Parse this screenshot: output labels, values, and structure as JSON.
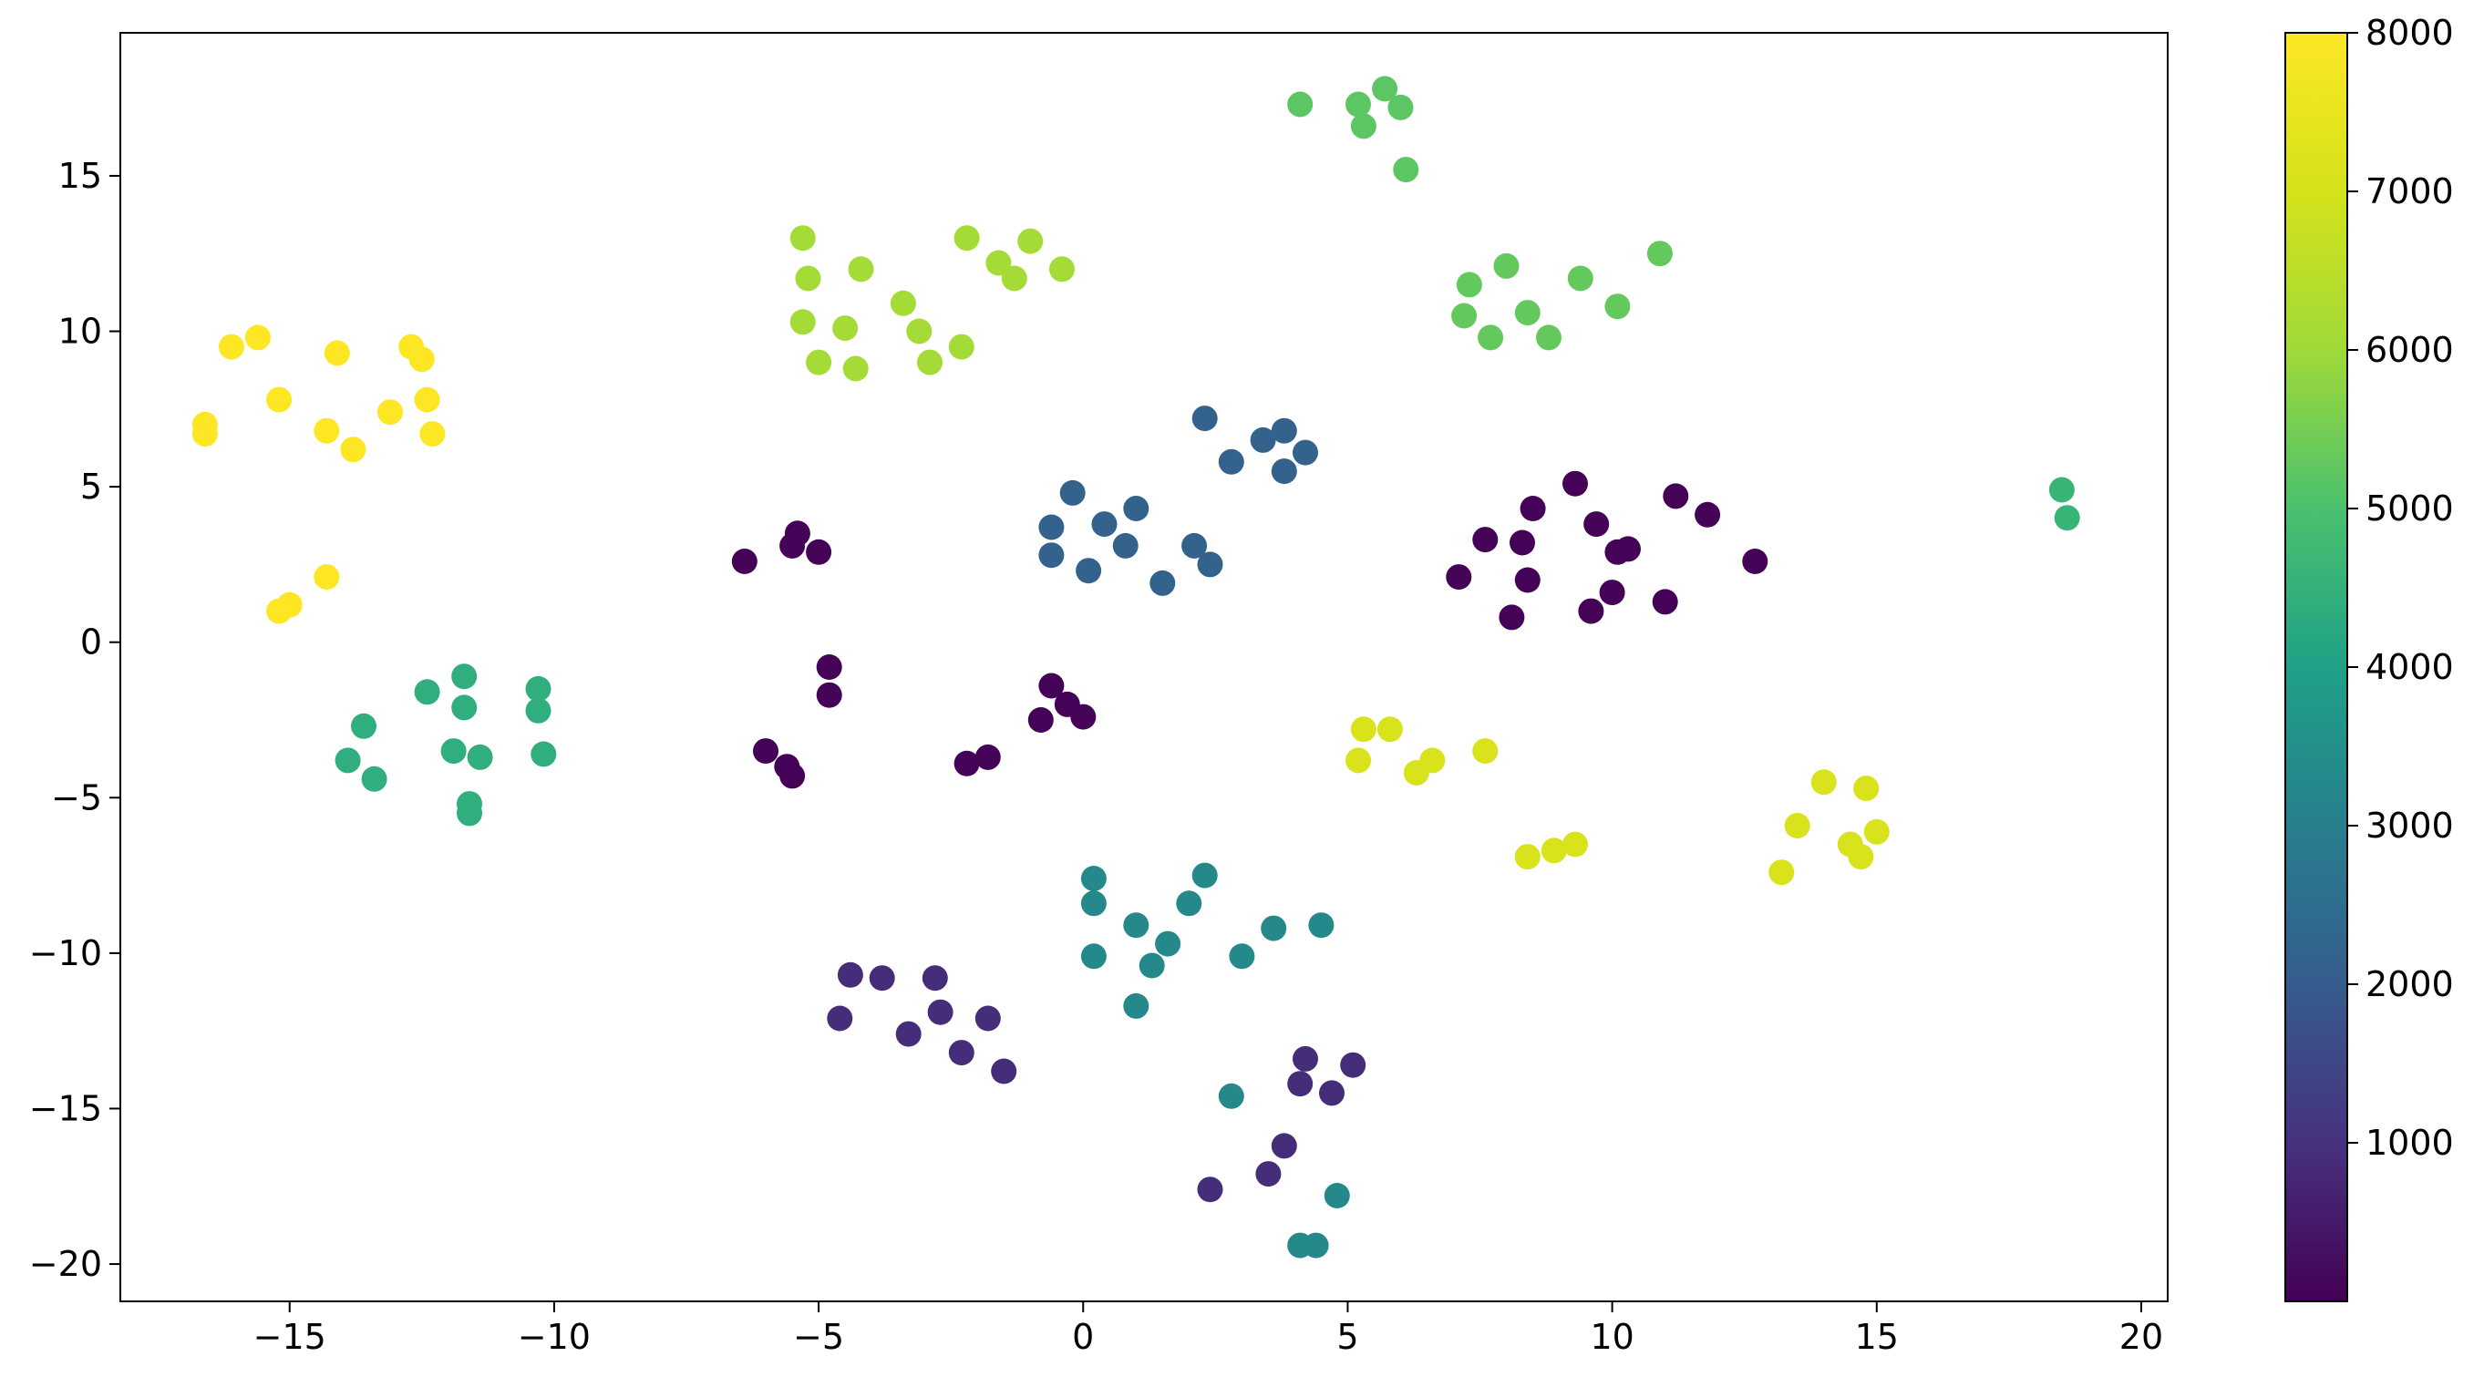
{
  "chart_data": {
    "type": "scatter",
    "title": "",
    "xlabel": "",
    "ylabel": "",
    "xlim": [
      -18.2,
      20.5
    ],
    "ylim": [
      -21.2,
      19.6
    ],
    "xticks": [
      -15,
      -10,
      -5,
      0,
      5,
      10,
      15,
      20
    ],
    "yticks": [
      -20,
      -15,
      -10,
      -5,
      0,
      5,
      10,
      15
    ],
    "xtick_labels": [
      "−15",
      "−10",
      "−5",
      "0",
      "5",
      "10",
      "15",
      "20"
    ],
    "ytick_labels": [
      "−20",
      "−15",
      "−10",
      "−5",
      "0",
      "5",
      "10",
      "15"
    ],
    "grid": false,
    "colormap": "viridis",
    "colorbar": {
      "min": 0,
      "max": 8000,
      "ticks": [
        1000,
        2000,
        3000,
        4000,
        5000,
        6000,
        7000,
        8000
      ],
      "tick_labels": [
        "1000",
        "2000",
        "3000",
        "4000",
        "5000",
        "6000",
        "7000",
        "8000"
      ]
    },
    "points": [
      {
        "x": -16.6,
        "y": 7.0,
        "value": 8000
      },
      {
        "x": -16.6,
        "y": 6.7,
        "value": 8000
      },
      {
        "x": -16.1,
        "y": 9.5,
        "value": 8000
      },
      {
        "x": -15.6,
        "y": 9.8,
        "value": 8000
      },
      {
        "x": -15.2,
        "y": 7.8,
        "value": 8000
      },
      {
        "x": -14.3,
        "y": 6.8,
        "value": 8000
      },
      {
        "x": -14.1,
        "y": 9.3,
        "value": 8000
      },
      {
        "x": -13.8,
        "y": 6.2,
        "value": 8000
      },
      {
        "x": -13.1,
        "y": 7.4,
        "value": 8000
      },
      {
        "x": -12.7,
        "y": 9.5,
        "value": 8000
      },
      {
        "x": -12.5,
        "y": 9.1,
        "value": 8000
      },
      {
        "x": -12.4,
        "y": 7.8,
        "value": 8000
      },
      {
        "x": -12.3,
        "y": 6.7,
        "value": 8000
      },
      {
        "x": -15.2,
        "y": 1.0,
        "value": 8000
      },
      {
        "x": -15.0,
        "y": 1.2,
        "value": 8000
      },
      {
        "x": -14.3,
        "y": 2.1,
        "value": 8000
      },
      {
        "x": -13.9,
        "y": -3.8,
        "value": 4400
      },
      {
        "x": -13.6,
        "y": -2.7,
        "value": 4400
      },
      {
        "x": -13.4,
        "y": -4.4,
        "value": 4400
      },
      {
        "x": -12.4,
        "y": -1.6,
        "value": 4400
      },
      {
        "x": -11.9,
        "y": -3.5,
        "value": 4400
      },
      {
        "x": -11.7,
        "y": -1.1,
        "value": 4400
      },
      {
        "x": -11.7,
        "y": -2.1,
        "value": 4400
      },
      {
        "x": -11.6,
        "y": -5.2,
        "value": 4400
      },
      {
        "x": -11.6,
        "y": -5.5,
        "value": 4400
      },
      {
        "x": -11.4,
        "y": -3.7,
        "value": 4400
      },
      {
        "x": -10.3,
        "y": -1.5,
        "value": 4400
      },
      {
        "x": -10.3,
        "y": -2.2,
        "value": 4400
      },
      {
        "x": -10.2,
        "y": -3.6,
        "value": 4400
      },
      {
        "x": -5.3,
        "y": 13.0,
        "value": 6100
      },
      {
        "x": -5.2,
        "y": 11.7,
        "value": 6100
      },
      {
        "x": -5.3,
        "y": 10.3,
        "value": 6100
      },
      {
        "x": -5.0,
        "y": 9.0,
        "value": 6100
      },
      {
        "x": -4.5,
        "y": 10.1,
        "value": 6100
      },
      {
        "x": -4.3,
        "y": 8.8,
        "value": 6100
      },
      {
        "x": -4.2,
        "y": 12.0,
        "value": 6100
      },
      {
        "x": -3.4,
        "y": 10.9,
        "value": 6100
      },
      {
        "x": -3.1,
        "y": 10.0,
        "value": 6100
      },
      {
        "x": -2.9,
        "y": 9.0,
        "value": 6100
      },
      {
        "x": -2.3,
        "y": 9.5,
        "value": 6100
      },
      {
        "x": -2.2,
        "y": 13.0,
        "value": 6100
      },
      {
        "x": -1.6,
        "y": 12.2,
        "value": 6100
      },
      {
        "x": -1.3,
        "y": 11.7,
        "value": 6100
      },
      {
        "x": -1.0,
        "y": 12.9,
        "value": 6100
      },
      {
        "x": -0.4,
        "y": 12.0,
        "value": 6100
      },
      {
        "x": 4.1,
        "y": 17.3,
        "value": 5200
      },
      {
        "x": 5.2,
        "y": 17.3,
        "value": 5200
      },
      {
        "x": 5.3,
        "y": 16.6,
        "value": 5200
      },
      {
        "x": 5.7,
        "y": 17.8,
        "value": 5200
      },
      {
        "x": 6.0,
        "y": 17.2,
        "value": 5200
      },
      {
        "x": 6.1,
        "y": 15.2,
        "value": 5200
      },
      {
        "x": 7.3,
        "y": 11.5,
        "value": 5300
      },
      {
        "x": 7.2,
        "y": 10.5,
        "value": 5300
      },
      {
        "x": 7.7,
        "y": 9.8,
        "value": 5300
      },
      {
        "x": 8.0,
        "y": 12.1,
        "value": 5300
      },
      {
        "x": 8.4,
        "y": 10.6,
        "value": 5300
      },
      {
        "x": 8.8,
        "y": 9.8,
        "value": 5300
      },
      {
        "x": 9.4,
        "y": 11.7,
        "value": 5300
      },
      {
        "x": 10.1,
        "y": 10.8,
        "value": 5300
      },
      {
        "x": 10.9,
        "y": 12.5,
        "value": 5300
      },
      {
        "x": -6.4,
        "y": 2.6,
        "value": 50
      },
      {
        "x": -5.5,
        "y": 3.1,
        "value": 50
      },
      {
        "x": -5.4,
        "y": 3.5,
        "value": 50
      },
      {
        "x": -5.0,
        "y": 2.9,
        "value": 50
      },
      {
        "x": -4.8,
        "y": -0.8,
        "value": 50
      },
      {
        "x": -4.8,
        "y": -1.7,
        "value": 50
      },
      {
        "x": -6.0,
        "y": -3.5,
        "value": 50
      },
      {
        "x": -5.6,
        "y": -4.0,
        "value": 50
      },
      {
        "x": -5.5,
        "y": -4.3,
        "value": 50
      },
      {
        "x": -2.2,
        "y": -3.9,
        "value": 50
      },
      {
        "x": -1.8,
        "y": -3.7,
        "value": 50
      },
      {
        "x": -0.8,
        "y": -2.5,
        "value": 50
      },
      {
        "x": -0.6,
        "y": -1.4,
        "value": 50
      },
      {
        "x": -0.3,
        "y": -2.0,
        "value": 50
      },
      {
        "x": 0.0,
        "y": -2.4,
        "value": 50
      },
      {
        "x": 7.1,
        "y": 2.1,
        "value": 50
      },
      {
        "x": 7.6,
        "y": 3.3,
        "value": 50
      },
      {
        "x": 8.1,
        "y": 0.8,
        "value": 50
      },
      {
        "x": 8.3,
        "y": 3.2,
        "value": 50
      },
      {
        "x": 8.4,
        "y": 2.0,
        "value": 50
      },
      {
        "x": 8.5,
        "y": 4.3,
        "value": 50
      },
      {
        "x": 9.3,
        "y": 5.1,
        "value": 50
      },
      {
        "x": 9.6,
        "y": 1.0,
        "value": 50
      },
      {
        "x": 9.7,
        "y": 3.8,
        "value": 50
      },
      {
        "x": 10.0,
        "y": 1.6,
        "value": 50
      },
      {
        "x": 10.1,
        "y": 2.9,
        "value": 50
      },
      {
        "x": 10.3,
        "y": 3.0,
        "value": 50
      },
      {
        "x": 11.0,
        "y": 1.3,
        "value": 50
      },
      {
        "x": 11.2,
        "y": 4.7,
        "value": 50
      },
      {
        "x": 11.8,
        "y": 4.1,
        "value": 50
      },
      {
        "x": 12.7,
        "y": 2.6,
        "value": 50
      },
      {
        "x": -0.6,
        "y": 3.7,
        "value": 2200
      },
      {
        "x": -0.6,
        "y": 2.8,
        "value": 2200
      },
      {
        "x": -0.2,
        "y": 4.8,
        "value": 2200
      },
      {
        "x": 0.1,
        "y": 2.3,
        "value": 2200
      },
      {
        "x": 0.4,
        "y": 3.8,
        "value": 2200
      },
      {
        "x": 0.8,
        "y": 3.1,
        "value": 2200
      },
      {
        "x": 1.0,
        "y": 4.3,
        "value": 2200
      },
      {
        "x": 1.5,
        "y": 1.9,
        "value": 2200
      },
      {
        "x": 2.1,
        "y": 3.1,
        "value": 2200
      },
      {
        "x": 2.4,
        "y": 2.5,
        "value": 2200
      },
      {
        "x": 2.3,
        "y": 7.2,
        "value": 2200
      },
      {
        "x": 2.8,
        "y": 5.8,
        "value": 2200
      },
      {
        "x": 3.4,
        "y": 6.5,
        "value": 2200
      },
      {
        "x": 3.8,
        "y": 5.5,
        "value": 2200
      },
      {
        "x": 3.8,
        "y": 6.8,
        "value": 2200
      },
      {
        "x": 4.2,
        "y": 6.1,
        "value": 2200
      },
      {
        "x": 5.2,
        "y": -3.8,
        "value": 7100
      },
      {
        "x": 5.3,
        "y": -2.8,
        "value": 7100
      },
      {
        "x": 5.8,
        "y": -2.8,
        "value": 7100
      },
      {
        "x": 6.3,
        "y": -4.2,
        "value": 7100
      },
      {
        "x": 6.6,
        "y": -3.8,
        "value": 7100
      },
      {
        "x": 7.6,
        "y": -3.5,
        "value": 7100
      },
      {
        "x": 8.4,
        "y": -6.9,
        "value": 7100
      },
      {
        "x": 8.9,
        "y": -6.7,
        "value": 7100
      },
      {
        "x": 9.3,
        "y": -6.5,
        "value": 7100
      },
      {
        "x": 13.2,
        "y": -7.4,
        "value": 7100
      },
      {
        "x": 13.5,
        "y": -5.9,
        "value": 7100
      },
      {
        "x": 14.0,
        "y": -4.5,
        "value": 7100
      },
      {
        "x": 14.5,
        "y": -6.5,
        "value": 7100
      },
      {
        "x": 14.7,
        "y": -6.9,
        "value": 7100
      },
      {
        "x": 14.8,
        "y": -4.7,
        "value": 7100
      },
      {
        "x": 15.0,
        "y": -6.1,
        "value": 7100
      },
      {
        "x": 18.5,
        "y": 4.9,
        "value": 4600
      },
      {
        "x": 18.6,
        "y": 4.0,
        "value": 4600
      },
      {
        "x": 0.2,
        "y": -7.6,
        "value": 3300
      },
      {
        "x": 0.2,
        "y": -8.4,
        "value": 3300
      },
      {
        "x": 0.2,
        "y": -10.1,
        "value": 3300
      },
      {
        "x": 1.0,
        "y": -9.1,
        "value": 3300
      },
      {
        "x": 1.0,
        "y": -11.7,
        "value": 3300
      },
      {
        "x": 1.3,
        "y": -10.4,
        "value": 3300
      },
      {
        "x": 1.6,
        "y": -9.7,
        "value": 3300
      },
      {
        "x": 2.0,
        "y": -8.4,
        "value": 3300
      },
      {
        "x": 2.3,
        "y": -7.5,
        "value": 3300
      },
      {
        "x": 3.0,
        "y": -10.1,
        "value": 3300
      },
      {
        "x": 3.6,
        "y": -9.2,
        "value": 3300
      },
      {
        "x": 4.5,
        "y": -9.1,
        "value": 3300
      },
      {
        "x": 2.8,
        "y": -14.6,
        "value": 3300
      },
      {
        "x": 4.1,
        "y": -19.4,
        "value": 3300
      },
      {
        "x": 4.4,
        "y": -19.4,
        "value": 3300
      },
      {
        "x": 4.8,
        "y": -17.8,
        "value": 3300
      },
      {
        "x": -4.6,
        "y": -12.1,
        "value": 900
      },
      {
        "x": -4.4,
        "y": -10.7,
        "value": 900
      },
      {
        "x": -3.8,
        "y": -10.8,
        "value": 900
      },
      {
        "x": -3.3,
        "y": -12.6,
        "value": 900
      },
      {
        "x": -2.8,
        "y": -10.8,
        "value": 900
      },
      {
        "x": -2.7,
        "y": -11.9,
        "value": 900
      },
      {
        "x": -2.3,
        "y": -13.2,
        "value": 900
      },
      {
        "x": -1.8,
        "y": -12.1,
        "value": 900
      },
      {
        "x": -1.5,
        "y": -13.8,
        "value": 900
      },
      {
        "x": 2.4,
        "y": -17.6,
        "value": 900
      },
      {
        "x": 3.5,
        "y": -17.1,
        "value": 900
      },
      {
        "x": 3.8,
        "y": -16.2,
        "value": 900
      },
      {
        "x": 4.1,
        "y": -14.2,
        "value": 900
      },
      {
        "x": 4.2,
        "y": -13.4,
        "value": 900
      },
      {
        "x": 4.7,
        "y": -14.5,
        "value": 900
      },
      {
        "x": 5.1,
        "y": -13.6,
        "value": 900
      }
    ]
  }
}
